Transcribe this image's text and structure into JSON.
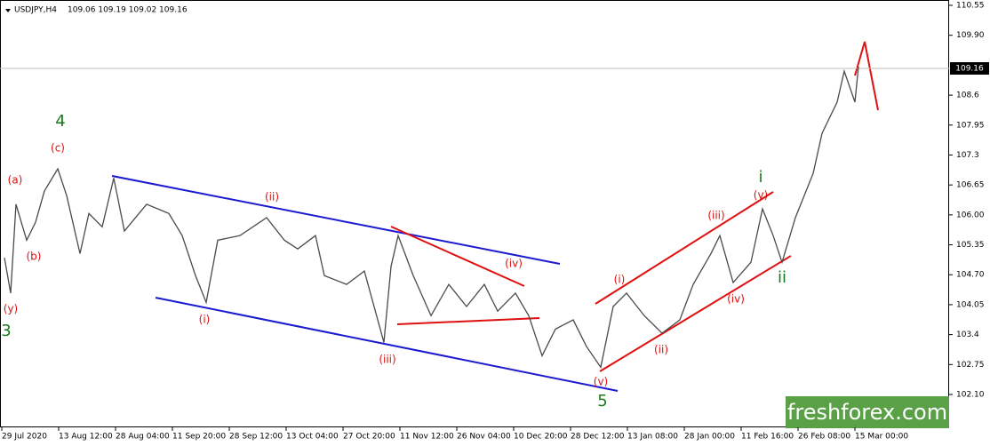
{
  "chart_data": {
    "type": "line",
    "title": "USDJPY,H4",
    "ohlc_text": "109.06 109.19 109.02 109.16",
    "x": [
      2.5,
      6,
      9,
      15,
      20,
      25,
      32.5,
      37.5,
      45,
      50,
      57.5,
      64,
      70,
      82.5,
      95,
      102.5,
      110,
      116,
      122.5,
      135,
      150,
      160,
      167.5,
      177.5,
      182.5,
      195,
      205,
      216,
      220,
      224,
      232.5,
      242.5,
      252.5,
      262.5,
      272.5,
      280,
      290,
      297.5,
      305,
      312.5,
      322.5,
      330,
      338,
      345,
      352.5,
      362.5,
      372.5,
      382.5,
      390,
      400,
      405,
      412.5,
      422.5,
      429,
      435,
      440,
      447.5,
      457.5,
      462.5,
      471,
      475,
      481,
      483
    ],
    "series": [
      {
        "name": "USDJPY",
        "color": "#4a4a4a",
        "values": [
          105.07,
          104.3,
          106.23,
          105.45,
          105.84,
          106.52,
          107.0,
          106.42,
          105.16,
          106.03,
          105.74,
          106.8,
          105.65,
          106.23,
          106.03,
          105.55,
          104.68,
          104.1,
          105.45,
          105.55,
          105.94,
          105.45,
          105.26,
          105.55,
          104.68,
          104.49,
          104.78,
          103.23,
          104.88,
          105.55,
          104.68,
          103.81,
          104.49,
          104.01,
          104.49,
          103.91,
          104.3,
          103.81,
          102.94,
          103.52,
          103.72,
          103.14,
          102.69,
          104.01,
          104.3,
          103.81,
          103.43,
          103.72,
          104.49,
          105.16,
          105.55,
          104.53,
          104.97,
          106.13,
          105.55,
          104.97,
          105.94,
          106.9,
          107.77,
          108.45,
          109.12,
          108.45,
          109.22
        ]
      }
    ],
    "xlim": [
      0,
      534
    ],
    "ylim": [
      102.1,
      110.55
    ],
    "xticks": [
      {
        "value": 1,
        "label": "29 Jul 2020"
      },
      {
        "value": 33,
        "label": "13 Aug 12:00"
      },
      {
        "value": 65,
        "label": "28 Aug 04:00"
      },
      {
        "value": 97,
        "label": "11 Sep 20:00"
      },
      {
        "value": 129,
        "label": "28 Sep 12:00"
      },
      {
        "value": 161,
        "label": "13 Oct 04:00"
      },
      {
        "value": 193,
        "label": "27 Oct 20:00"
      },
      {
        "value": 225,
        "label": "11 Nov 12:00"
      },
      {
        "value": 257,
        "label": "26 Nov 04:00"
      },
      {
        "value": 289,
        "label": "10 Dec 20:00"
      },
      {
        "value": 321,
        "label": "28 Dec 12:00"
      },
      {
        "value": 353,
        "label": "13 Jan 08:00"
      },
      {
        "value": 385,
        "label": "28 Jan 00:00"
      },
      {
        "value": 417,
        "label": "11 Feb 16:00"
      },
      {
        "value": 449,
        "label": "26 Feb 08:00"
      },
      {
        "value": 481,
        "label": "15 Mar 00:00"
      }
    ],
    "yticks": [
      110.55,
      {
        "value": 109.9,
        "label": "109.90"
      },
      108.6,
      107.95,
      107.3,
      106.65,
      {
        "value": 106,
        "label": "106.00"
      },
      105.35,
      {
        "value": 104.7,
        "label": "104.70"
      },
      104.05,
      103.4,
      102.75,
      {
        "value": 102.1,
        "label": "102.10"
      }
    ],
    "last_price": 109.16,
    "annotations": [
      "4",
      "(c)",
      "(a)",
      "(b)",
      "(y)",
      "3",
      "(ii)",
      "(i)",
      "(iii)",
      "(iv)",
      "5",
      "(v)",
      "(i)",
      "(ii)",
      "(iii)",
      "(iv)",
      "(v)",
      "i",
      "ii"
    ],
    "watermark": "freshforex.com"
  }
}
